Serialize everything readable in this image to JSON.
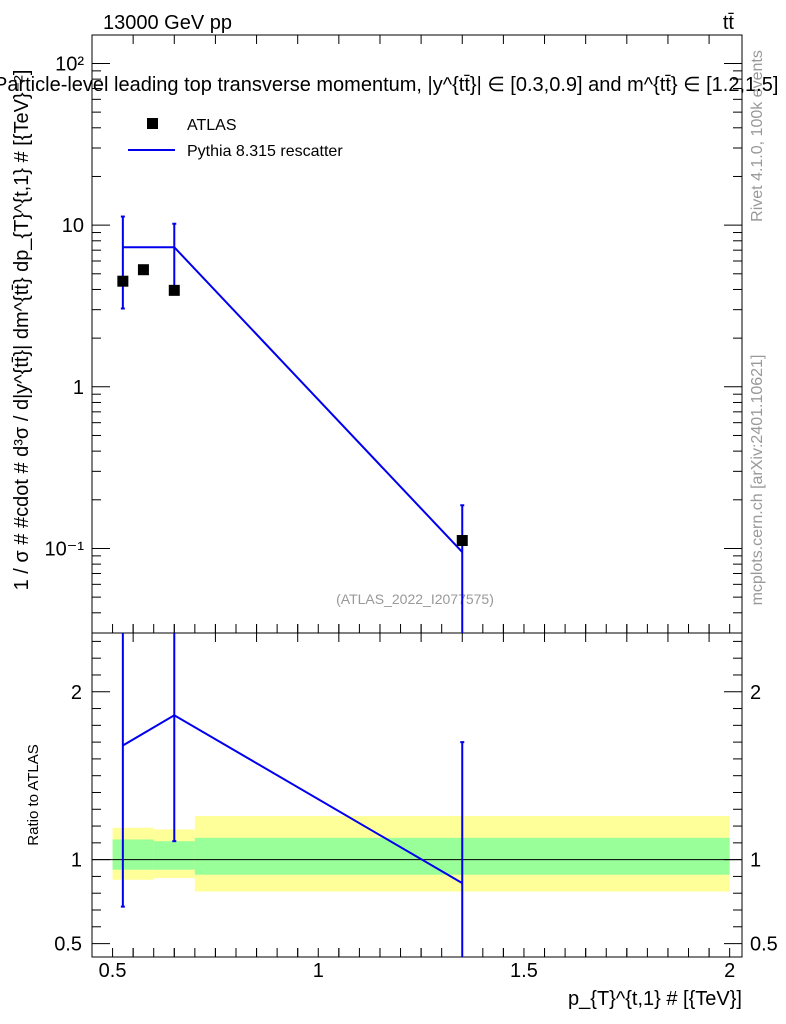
{
  "header": {
    "energy_label": "13000 GeV pp",
    "process_label": "tt̄",
    "plot_title": "Particle-level leading top transverse momentum, |y^{tt̄}| ∈ [0.3,0.9] and m^{tt̄} ∈ [1.2,1.5]",
    "analysis_id": "(ATLAS_2022_I2077575)",
    "side_label_rivet": "Rivet 4.1.0,  100k events",
    "side_label_mcplots": "mcplots.cern.ch [arXiv:2401.10621]"
  },
  "chart_data": [
    {
      "type": "line",
      "panel": "main",
      "yscale": "log",
      "ylim": [
        0.03,
        150
      ],
      "xlim": [
        0.45,
        2.03
      ],
      "ylabel": "1 / σ # #cdot # d³σ / d|y^{tt̄}| dm^{tt̄} dp_{T}^{t,1} # [{TeV}⁻²]",
      "y_tick_labels": [
        "10⁻¹",
        "1",
        "10",
        "10²"
      ],
      "y_tick_values": [
        0.1,
        1,
        10,
        100
      ],
      "legend_position": "top-left",
      "series": [
        {
          "name": "ATLAS",
          "style": "markers",
          "color": "#000000",
          "x": [
            0.525,
            0.575,
            0.65,
            1.35
          ],
          "y": [
            4.5,
            5.3,
            3.95,
            0.112
          ]
        },
        {
          "name": "Pythia 8.315 rescatter",
          "style": "step-line",
          "color": "#0000ee",
          "x": [
            0.525,
            0.65,
            1.35
          ],
          "y": [
            7.3,
            7.3,
            0.095
          ],
          "err_low": [
            3.05,
            4.15,
            0.028
          ],
          "err_high": [
            11.3,
            10.2,
            0.185
          ]
        }
      ]
    },
    {
      "type": "line",
      "panel": "ratio",
      "ylabel": "Ratio to ATLAS",
      "xlabel": "p_{T}^{t,1} # [{TeV}]",
      "ylim": [
        0.42,
        2.35
      ],
      "xlim": [
        0.45,
        2.03
      ],
      "x_tick_labels": [
        "0.5",
        "1",
        "1.5",
        "2"
      ],
      "x_tick_values": [
        0.5,
        1.0,
        1.5,
        2.0
      ],
      "y_tick_labels": [
        "0.5",
        "1",
        "2"
      ],
      "y_tick_values": [
        0.5,
        1,
        2
      ],
      "reference_line": 1.0,
      "bands": [
        {
          "name": "ATLAS stat",
          "color": "#99ff99",
          "bins": [
            [
              0.5,
              0.6,
              0.94,
              1.12
            ],
            [
              0.6,
              0.7,
              0.94,
              1.11
            ],
            [
              0.7,
              2.0,
              0.91,
              1.13
            ]
          ]
        },
        {
          "name": "ATLAS total",
          "color": "#ffff99",
          "bins": [
            [
              0.5,
              0.6,
              0.88,
              1.19
            ],
            [
              0.6,
              0.7,
              0.89,
              1.18
            ],
            [
              0.7,
              2.0,
              0.81,
              1.26
            ]
          ]
        }
      ],
      "series": [
        {
          "name": "Pythia 8.315 rescatter",
          "color": "#0000ee",
          "x": [
            0.525,
            0.65,
            1.35
          ],
          "y": [
            1.68,
            1.86,
            0.86
          ],
          "err_low": [
            0.72,
            1.11,
            0.3
          ],
          "err_high": [
            2.6,
            2.6,
            1.7
          ]
        }
      ]
    }
  ]
}
